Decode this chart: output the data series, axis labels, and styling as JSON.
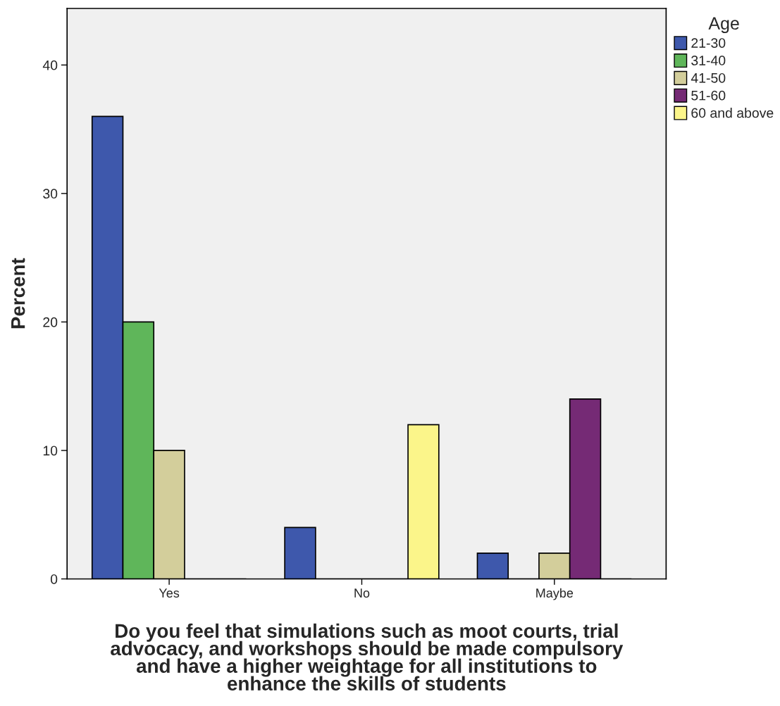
{
  "chart_data": {
    "type": "bar",
    "xlabel": "Do you feel that simulations such as moot courts, trial\nadvocacy, and workshops should be made compulsory\nand have a higher weightage for all institutions to\nenhance the skills of students",
    "ylabel": "Percent",
    "legend_title": "Age",
    "categories": [
      "Yes",
      "No",
      "Maybe"
    ],
    "series": [
      {
        "name": "21-30",
        "color": "#3e58ac",
        "values": [
          36,
          4,
          2
        ]
      },
      {
        "name": "31-40",
        "color": "#5fb65a",
        "values": [
          20,
          0,
          0
        ]
      },
      {
        "name": "41-50",
        "color": "#d3ce9b",
        "values": [
          10,
          0,
          2
        ]
      },
      {
        "name": "51-60",
        "color": "#752a75",
        "values": [
          0,
          0,
          14
        ]
      },
      {
        "name": "60 and above",
        "color": "#fbf58a",
        "values": [
          0,
          12,
          0
        ]
      }
    ],
    "ylim": [
      0,
      44.4
    ],
    "yticks": [
      0,
      10,
      20,
      30,
      40
    ],
    "grid": false,
    "legend": "right"
  }
}
